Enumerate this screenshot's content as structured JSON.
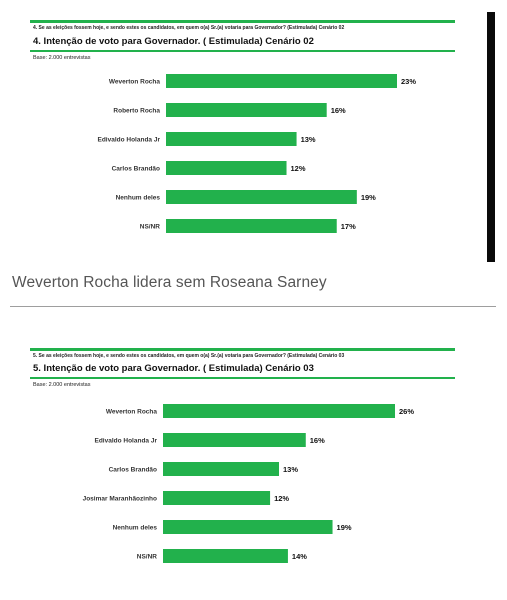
{
  "caption": "Weverton Rocha lidera sem Roseana Sarney",
  "colors": {
    "bar": "#22b14c",
    "rule": "#22b14c",
    "caption": "#555555"
  },
  "panels": [
    {
      "question": "4. Se as eleições fossem hoje, e sendo estes os candidatos, em quem o(a) Sr.(a) votaria para Governador? (Estimulada) Cenário 02",
      "title": "4. Intenção de voto para Governador. ( Estimulada) Cenário 02",
      "base": "Base: 2.000 entrevistas"
    },
    {
      "question": "5. Se as eleições fossem hoje, e sendo estes os candidatos, em quem o(a) Sr.(a) votaria para Governador? (Estimulada) Cenário 03",
      "title": "5. Intenção de voto para Governador. ( Estimulada) Cenário 03",
      "base": "Base: 2.000 entrevistas"
    }
  ],
  "chart_data": [
    {
      "type": "bar",
      "orientation": "horizontal",
      "title": "4. Intenção de voto para Governador. ( Estimulada) Cenário 02",
      "categories": [
        "Weverton Rocha",
        "Roberto Rocha",
        "Edivaldo Holanda Jr",
        "Carlos Brandão",
        "Nenhum deles",
        "NS/NR"
      ],
      "values": [
        23,
        16,
        13,
        12,
        19,
        17
      ],
      "value_labels": [
        "23%",
        "16%",
        "13%",
        "12%",
        "19%",
        "17%"
      ],
      "unit": "%",
      "xlim": [
        0,
        26
      ],
      "grid": false,
      "legend": "none"
    },
    {
      "type": "bar",
      "orientation": "horizontal",
      "title": "5. Intenção de voto para Governador. ( Estimulada) Cenário 03",
      "categories": [
        "Weverton Rocha",
        "Edivaldo Holanda Jr",
        "Carlos Brandão",
        "Josimar Maranhãozinho",
        "Nenhum deles",
        "NS/NR"
      ],
      "values": [
        26,
        16,
        13,
        12,
        19,
        14
      ],
      "value_labels": [
        "26%",
        "16%",
        "13%",
        "12%",
        "19%",
        "14%"
      ],
      "unit": "%",
      "xlim": [
        0,
        26
      ],
      "grid": false,
      "legend": "none"
    }
  ]
}
